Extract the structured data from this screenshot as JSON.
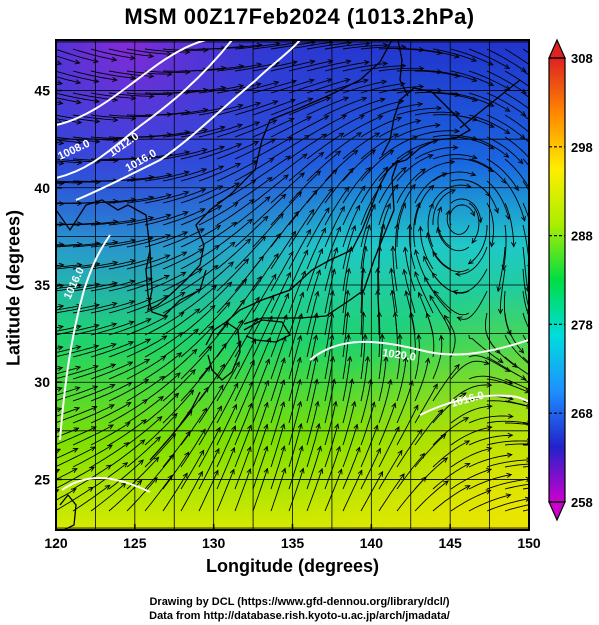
{
  "title": "MSM 00Z17Feb2024 (1013.2hPa)",
  "x_axis": {
    "label": "Longitude (degrees)",
    "range": [
      120,
      150
    ],
    "ticks": [
      120,
      125,
      130,
      135,
      140,
      145,
      150
    ]
  },
  "y_axis": {
    "label": "Latitude  (degrees)",
    "range": [
      22.4,
      47.6
    ],
    "ticks": [
      25,
      30,
      35,
      40,
      45
    ]
  },
  "colorbar": {
    "min": 258,
    "max": 308,
    "ticks": [
      258,
      268,
      278,
      288,
      298,
      308
    ],
    "colors": [
      "#cc00cc",
      "#2222cc",
      "#1e90ff",
      "#00dddd",
      "#00dd44",
      "#aaee00",
      "#ffee00",
      "#ff8800",
      "#dd2222"
    ]
  },
  "isobar_labels": [
    "1008.0",
    "1012.0",
    "1016.0",
    "1016.0",
    "1020.0",
    "1016.0"
  ],
  "coastline_color": "#000000",
  "isobar_color": "#ffffff",
  "footer": {
    "line1": "Drawing by DCL (https://www.gfd-dennou.org/library/dcl/)",
    "line2": "Data from http://database.rish.kyoto-u.ac.jp/arch/jmadata/"
  }
}
